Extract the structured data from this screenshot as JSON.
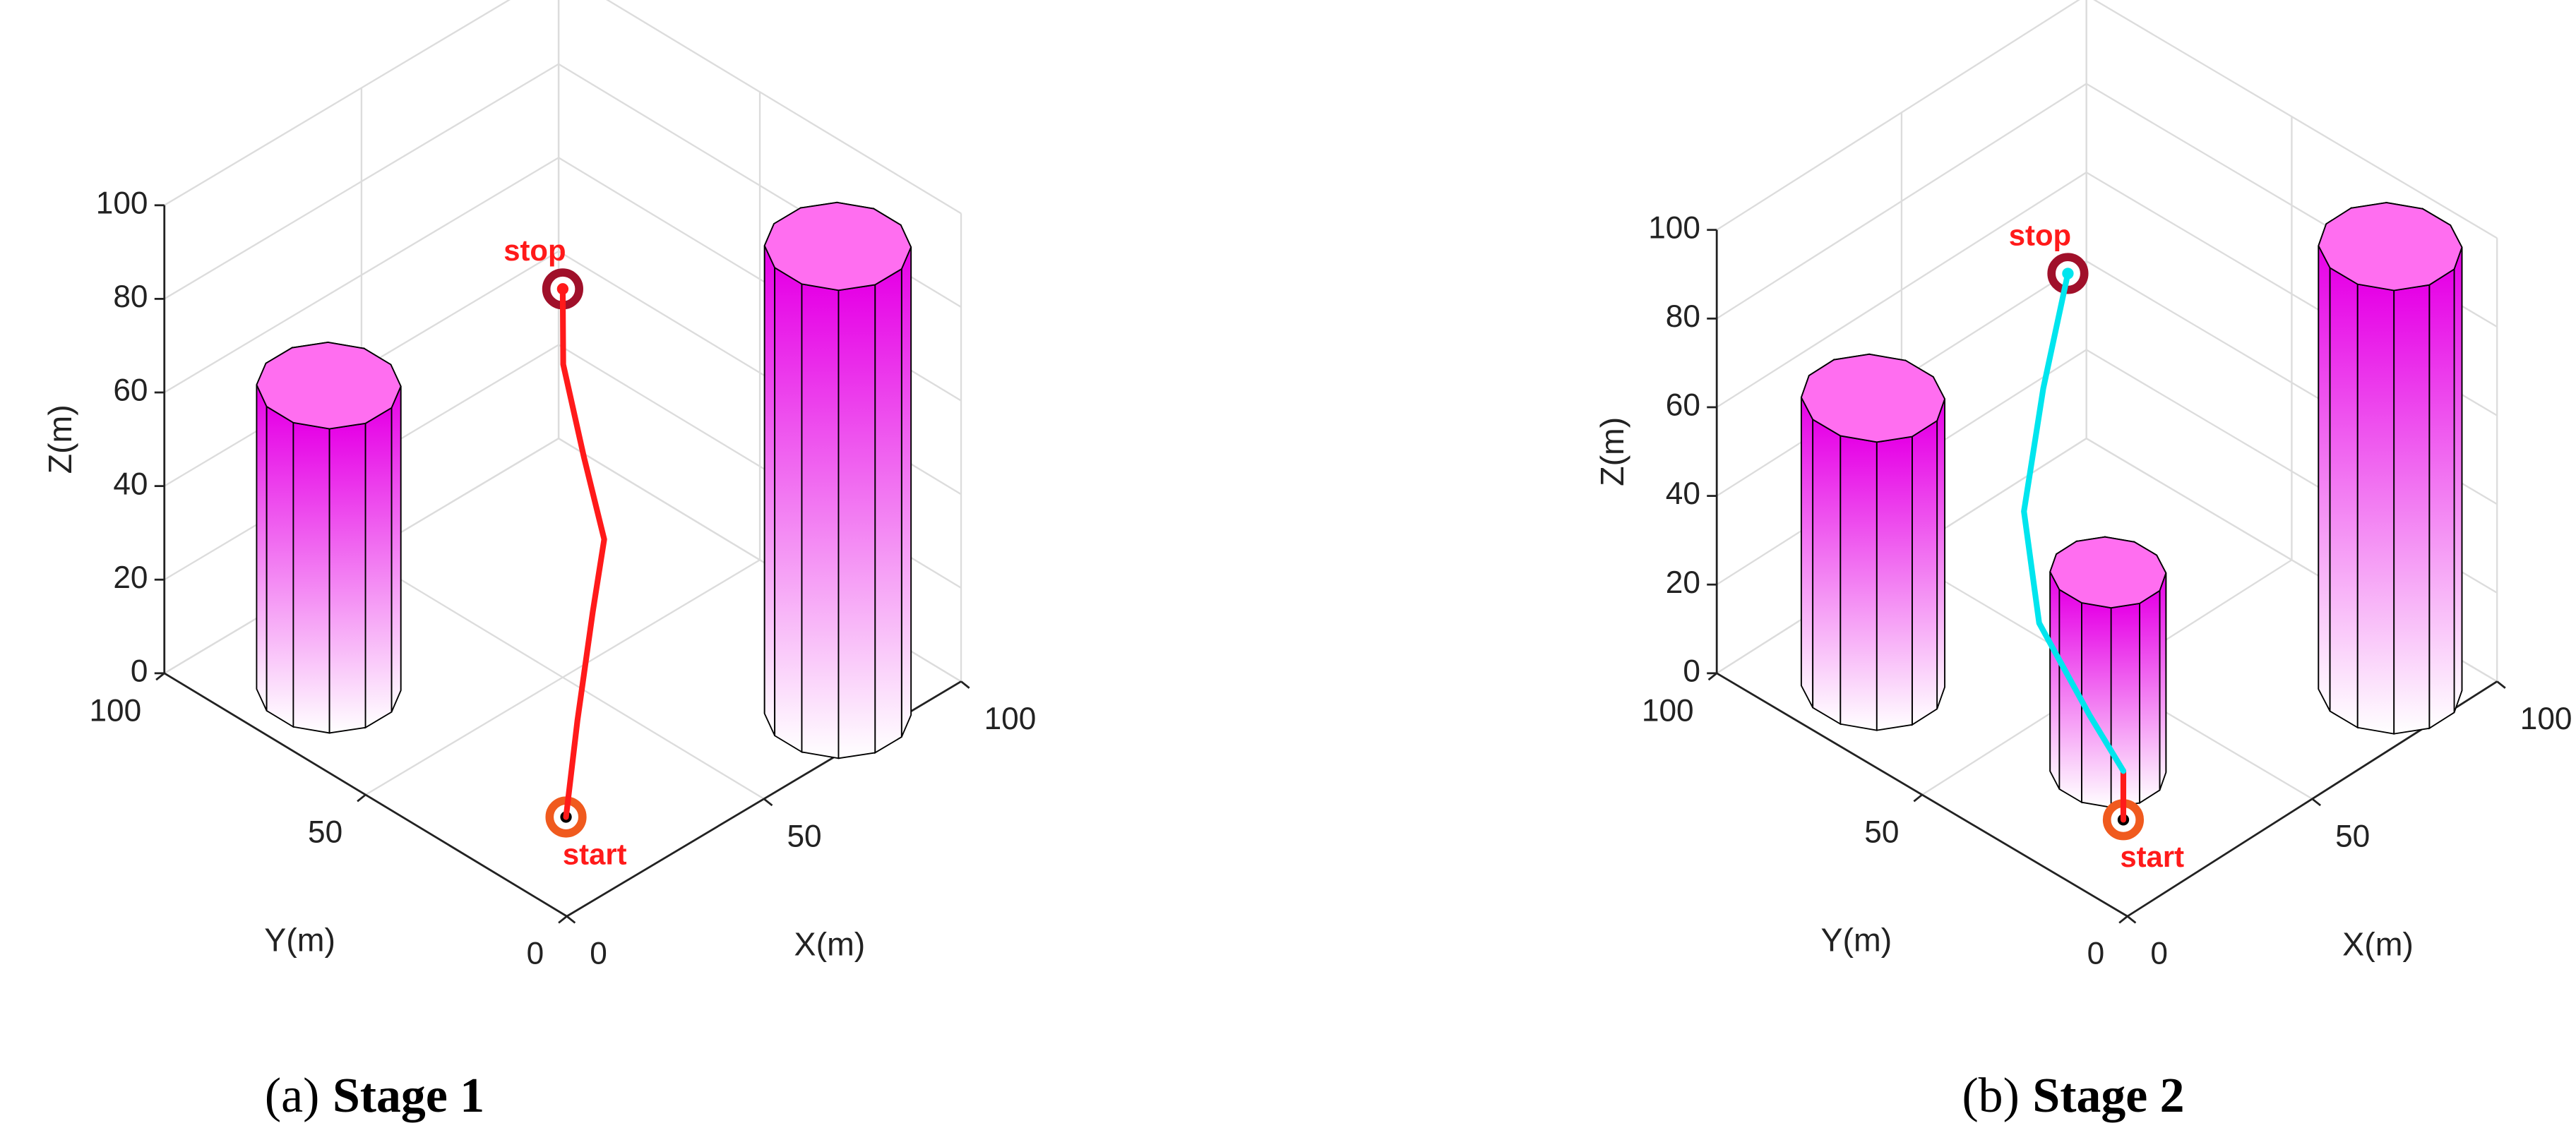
{
  "chart_data": [
    {
      "type": "3d-path",
      "xlabel": "X(m)",
      "ylabel": "Y(m)",
      "zlabel": "Z(m)",
      "xlim": [
        0,
        100
      ],
      "ylim": [
        0,
        100
      ],
      "zlim": [
        0,
        100
      ],
      "xticks": [
        0,
        50,
        100
      ],
      "yticks": [
        0,
        50,
        100
      ],
      "zticks": [
        0,
        20,
        40,
        60,
        80,
        100
      ],
      "grid": true,
      "cylinders": [
        {
          "x": 17.5,
          "y": 76.3,
          "radius": 12.8,
          "height": 65,
          "color": "#e600e6",
          "top_color": "#ff6ef0"
        },
        {
          "x": 77.3,
          "y": 8.4,
          "radius": 13,
          "height": 100,
          "color": "#e600e6",
          "top_color": "#ff6ef0"
        }
      ],
      "paths": [
        {
          "color": "#ff1a1a",
          "x": [
            10,
            18,
            28,
            35,
            38,
            44,
            50
          ],
          "y": [
            10,
            15,
            21,
            25,
            33,
            44,
            50
          ],
          "z": [
            11,
            25,
            40,
            50,
            62,
            73,
            83
          ]
        }
      ],
      "start_label": "start",
      "stop_label": "stop",
      "start_color": "#f05a1e",
      "stop_color": "#a0102a",
      "caption_tag": "(a)",
      "caption": "Stage 1"
    },
    {
      "type": "3d-path",
      "xlabel": "X(m)",
      "ylabel": "Y(m)",
      "zlabel": "Z(m)",
      "xlim": [
        0,
        100
      ],
      "ylim": [
        0,
        100
      ],
      "zlim": [
        0,
        100
      ],
      "xticks": [
        0,
        50,
        100
      ],
      "yticks": [
        0,
        50,
        100
      ],
      "zticks": [
        0,
        20,
        40,
        60,
        80,
        100
      ],
      "grid": true,
      "cylinders": [
        {
          "x": 17.5,
          "y": 77.7,
          "radius": 13,
          "height": 65,
          "color": "#e600e6",
          "top_color": "#ff6ef0"
        },
        {
          "x": 84.2,
          "y": 11.8,
          "radius": 13,
          "height": 100,
          "color": "#e600e6",
          "top_color": "#ff6ef0"
        },
        {
          "x": 29.3,
          "y": 31.1,
          "radius": 10.5,
          "height": 45,
          "color": "#e600e6",
          "top_color": "#ff6ef0"
        }
      ],
      "paths": [
        {
          "color": "#ff1a1a",
          "x": [
            10,
            10
          ],
          "y": [
            10,
            10
          ],
          "z": [
            11,
            22
          ]
        },
        {
          "color": "#00e5ee",
          "x": [
            10,
            12,
            15,
            22,
            35,
            45
          ],
          "y": [
            10,
            20,
            35,
            45,
            52,
            55
          ],
          "z": [
            22,
            28,
            39,
            55,
            72,
            91
          ]
        }
      ],
      "start_label": "start",
      "stop_label": "stop",
      "start_color": "#f05a1e",
      "stop_color": "#a0102a",
      "caption_tag": "(b)",
      "caption": "Stage 2"
    }
  ]
}
